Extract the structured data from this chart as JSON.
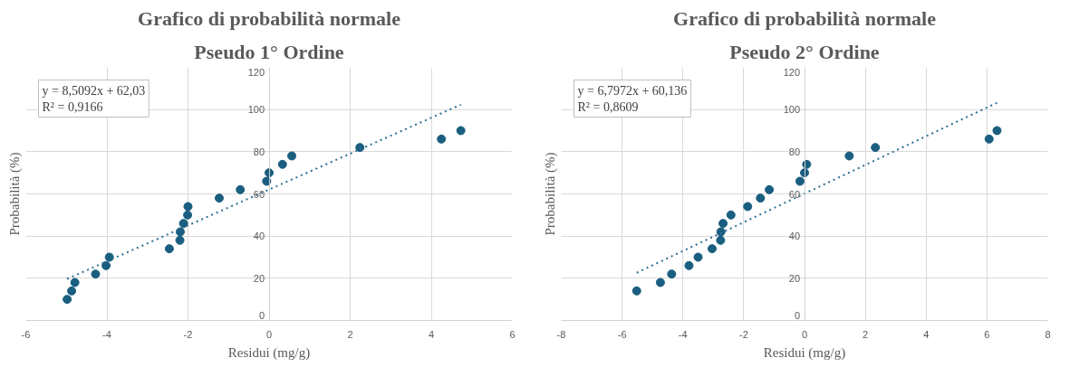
{
  "chart_data": [
    {
      "type": "scatter",
      "title": "Grafico di probabilità normale",
      "subtitle": "Pseudo 1° Ordine",
      "xlabel": "Residui (mg/g)",
      "ylabel": "Probabilità (%)",
      "annotations": [
        "y = 8,5092x + 62,03",
        "R² = 0,9166"
      ],
      "xlim": [
        -6,
        6
      ],
      "xticks": [
        -6,
        -4,
        -2,
        0,
        2,
        4,
        6
      ],
      "ylim": [
        0,
        120
      ],
      "yticks": [
        0,
        20,
        40,
        60,
        80,
        100,
        120
      ],
      "grid": true,
      "marker": "circle",
      "series": [
        {
          "type": "scatter",
          "color": "#1a5e80",
          "x": [
            -4.98,
            -4.87,
            -4.79,
            -4.28,
            -4.02,
            -3.94,
            -2.46,
            -2.2,
            -2.19,
            -2.11,
            -2.01,
            -2.0,
            -1.23,
            -0.71,
            -0.06,
            0.0,
            0.33,
            0.56,
            2.24,
            4.25,
            4.73
          ],
          "values": [
            10,
            14,
            18,
            22,
            26,
            30,
            34,
            38,
            42,
            46,
            50,
            54,
            58,
            62,
            66,
            70,
            74,
            78,
            82,
            86,
            90
          ]
        },
        {
          "type": "line",
          "line_style": "dotted",
          "marker": "none",
          "color": "#2b6f96",
          "x": [
            -4.98,
            4.73
          ],
          "values": [
            19.7,
            102.3
          ]
        }
      ]
    },
    {
      "type": "scatter",
      "title": "Grafico di probabilità normale",
      "subtitle": "Pseudo 2° Ordine",
      "xlabel": "Residui (mg/g)",
      "ylabel": "Probabilità (%)",
      "annotations": [
        "y = 6,7972x + 60,136",
        "R² = 0,8609"
      ],
      "xlim": [
        -8,
        8
      ],
      "xticks": [
        -8,
        -6,
        -4,
        -2,
        0,
        2,
        4,
        6,
        8
      ],
      "ylim": [
        0,
        120
      ],
      "yticks": [
        0,
        20,
        40,
        60,
        80,
        100,
        120
      ],
      "grid": true,
      "marker": "circle",
      "series": [
        {
          "type": "scatter",
          "color": "#1a5e80",
          "x": [
            -5.52,
            -4.74,
            -4.37,
            -3.8,
            -3.5,
            -3.04,
            -2.76,
            -2.75,
            -2.68,
            -2.42,
            -1.87,
            -1.45,
            -1.16,
            -0.15,
            0.0,
            0.07,
            1.47,
            2.33,
            6.07,
            6.33
          ],
          "values": [
            14,
            18,
            22,
            26,
            30,
            34,
            38,
            42,
            46,
            50,
            54,
            58,
            62,
            66,
            70,
            74,
            78,
            82,
            86,
            90
          ]
        },
        {
          "type": "line",
          "line_style": "dotted",
          "marker": "none",
          "color": "#2b6f96",
          "x": [
            -5.52,
            6.33
          ],
          "values": [
            22.6,
            103.2
          ]
        }
      ]
    }
  ]
}
